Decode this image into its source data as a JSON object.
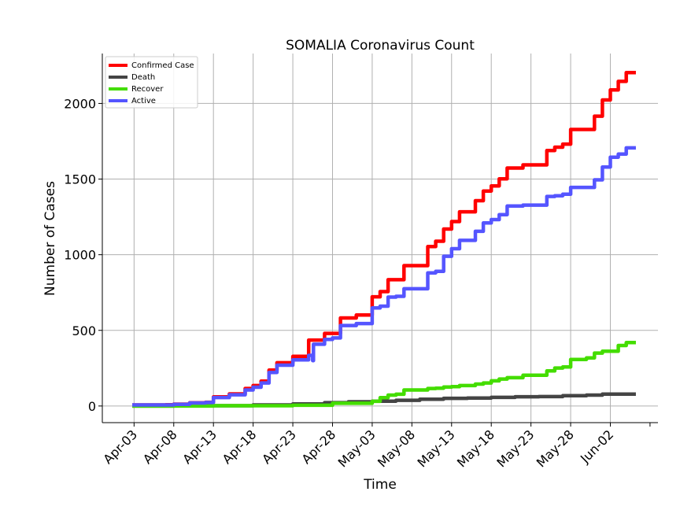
{
  "chart_data": {
    "type": "line",
    "title": "SOMALIA Coronavirus Count",
    "xlabel": "Time",
    "ylabel": "Number of Cases",
    "x_range": [
      "2020-03-30",
      "2020-06-08"
    ],
    "ylim": [
      -110,
      2330
    ],
    "y_ticks": [
      0,
      500,
      1000,
      1500,
      2000
    ],
    "x_ticks": [
      {
        "date": "2020-04-03",
        "label": "Apr-03"
      },
      {
        "date": "2020-04-08",
        "label": "Apr-08"
      },
      {
        "date": "2020-04-13",
        "label": "Apr-13"
      },
      {
        "date": "2020-04-18",
        "label": "Apr-18"
      },
      {
        "date": "2020-04-23",
        "label": "Apr-23"
      },
      {
        "date": "2020-04-28",
        "label": "Apr-28"
      },
      {
        "date": "2020-05-03",
        "label": "May-03"
      },
      {
        "date": "2020-05-08",
        "label": "May-08"
      },
      {
        "date": "2020-05-13",
        "label": "May-13"
      },
      {
        "date": "2020-05-18",
        "label": "May-18"
      },
      {
        "date": "2020-05-23",
        "label": "May-23"
      },
      {
        "date": "2020-05-28",
        "label": "May-28"
      },
      {
        "date": "2020-06-02",
        "label": "Jun-02"
      },
      {
        "date": "2020-06-07",
        "label": ""
      }
    ],
    "grid": true,
    "legend_position": "top-left",
    "series": [
      {
        "name": "Confirmed Case",
        "color": "#ff0000",
        "points": [
          [
            "2020-04-03",
            7
          ],
          [
            "2020-04-04",
            7
          ],
          [
            "2020-04-05",
            7
          ],
          [
            "2020-04-06",
            7
          ],
          [
            "2020-04-07",
            8
          ],
          [
            "2020-04-08",
            12
          ],
          [
            "2020-04-09",
            12
          ],
          [
            "2020-04-10",
            21
          ],
          [
            "2020-04-11",
            21
          ],
          [
            "2020-04-12",
            25
          ],
          [
            "2020-04-13",
            60
          ],
          [
            "2020-04-14",
            60
          ],
          [
            "2020-04-15",
            80
          ],
          [
            "2020-04-16",
            80
          ],
          [
            "2020-04-17",
            116
          ],
          [
            "2020-04-18",
            135
          ],
          [
            "2020-04-19",
            164
          ],
          [
            "2020-04-20",
            237
          ],
          [
            "2020-04-21",
            286
          ],
          [
            "2020-04-22",
            286
          ],
          [
            "2020-04-23",
            328
          ],
          [
            "2020-04-24",
            328
          ],
          [
            "2020-04-25",
            436
          ],
          [
            "2020-04-26",
            436
          ],
          [
            "2020-04-27",
            480
          ],
          [
            "2020-04-28",
            480
          ],
          [
            "2020-04-29",
            582
          ],
          [
            "2020-04-30",
            582
          ],
          [
            "2020-05-01",
            601
          ],
          [
            "2020-05-02",
            601
          ],
          [
            "2020-05-03",
            722
          ],
          [
            "2020-05-04",
            756
          ],
          [
            "2020-05-05",
            835
          ],
          [
            "2020-05-06",
            835
          ],
          [
            "2020-05-07",
            928
          ],
          [
            "2020-05-08",
            928
          ],
          [
            "2020-05-09",
            928
          ],
          [
            "2020-05-10",
            1054
          ],
          [
            "2020-05-11",
            1089
          ],
          [
            "2020-05-12",
            1170
          ],
          [
            "2020-05-13",
            1219
          ],
          [
            "2020-05-14",
            1284
          ],
          [
            "2020-05-15",
            1284
          ],
          [
            "2020-05-16",
            1357
          ],
          [
            "2020-05-17",
            1421
          ],
          [
            "2020-05-18",
            1455
          ],
          [
            "2020-05-19",
            1502
          ],
          [
            "2020-05-20",
            1573
          ],
          [
            "2020-05-21",
            1573
          ],
          [
            "2020-05-22",
            1594
          ],
          [
            "2020-05-23",
            1594
          ],
          [
            "2020-05-24",
            1594
          ],
          [
            "2020-05-25",
            1689
          ],
          [
            "2020-05-26",
            1711
          ],
          [
            "2020-05-27",
            1731
          ],
          [
            "2020-05-28",
            1828
          ],
          [
            "2020-05-29",
            1828
          ],
          [
            "2020-05-30",
            1828
          ],
          [
            "2020-05-31",
            1916
          ],
          [
            "2020-06-01",
            2023
          ],
          [
            "2020-06-02",
            2089
          ],
          [
            "2020-06-03",
            2146
          ],
          [
            "2020-06-04",
            2204
          ],
          [
            "2020-06-05",
            2204
          ]
        ]
      },
      {
        "name": "Death",
        "color": "#444444",
        "points": [
          [
            "2020-04-03",
            0
          ],
          [
            "2020-04-08",
            1
          ],
          [
            "2020-04-13",
            2
          ],
          [
            "2020-04-18",
            7
          ],
          [
            "2020-04-23",
            14
          ],
          [
            "2020-04-27",
            22
          ],
          [
            "2020-04-30",
            28
          ],
          [
            "2020-05-03",
            32
          ],
          [
            "2020-05-06",
            38
          ],
          [
            "2020-05-09",
            45
          ],
          [
            "2020-05-12",
            51
          ],
          [
            "2020-05-15",
            53
          ],
          [
            "2020-05-18",
            57
          ],
          [
            "2020-05-21",
            61
          ],
          [
            "2020-05-24",
            62
          ],
          [
            "2020-05-27",
            68
          ],
          [
            "2020-05-30",
            72
          ],
          [
            "2020-06-01",
            79
          ],
          [
            "2020-06-05",
            79
          ]
        ]
      },
      {
        "name": "Recover",
        "color": "#44dd00",
        "points": [
          [
            "2020-04-03",
            0
          ],
          [
            "2020-04-13",
            2
          ],
          [
            "2020-04-23",
            5
          ],
          [
            "2020-04-28",
            18
          ],
          [
            "2020-05-03",
            31
          ],
          [
            "2020-05-04",
            55
          ],
          [
            "2020-05-05",
            72
          ],
          [
            "2020-05-06",
            78
          ],
          [
            "2020-05-07",
            106
          ],
          [
            "2020-05-08",
            106
          ],
          [
            "2020-05-09",
            106
          ],
          [
            "2020-05-10",
            116
          ],
          [
            "2020-05-11",
            118
          ],
          [
            "2020-05-12",
            125
          ],
          [
            "2020-05-13",
            128
          ],
          [
            "2020-05-14",
            135
          ],
          [
            "2020-05-15",
            135
          ],
          [
            "2020-05-16",
            145
          ],
          [
            "2020-05-17",
            152
          ],
          [
            "2020-05-18",
            166
          ],
          [
            "2020-05-19",
            178
          ],
          [
            "2020-05-20",
            187
          ],
          [
            "2020-05-21",
            187
          ],
          [
            "2020-05-22",
            203
          ],
          [
            "2020-05-23",
            203
          ],
          [
            "2020-05-24",
            203
          ],
          [
            "2020-05-25",
            232
          ],
          [
            "2020-05-26",
            251
          ],
          [
            "2020-05-27",
            258
          ],
          [
            "2020-05-28",
            308
          ],
          [
            "2020-05-29",
            308
          ],
          [
            "2020-05-30",
            318
          ],
          [
            "2020-05-31",
            350
          ],
          [
            "2020-06-01",
            362
          ],
          [
            "2020-06-02",
            362
          ],
          [
            "2020-06-03",
            400
          ],
          [
            "2020-06-04",
            419
          ],
          [
            "2020-06-05",
            419
          ]
        ]
      },
      {
        "name": "Active",
        "color": "#5555ff",
        "points": [
          [
            "2020-04-03",
            7
          ],
          [
            "2020-04-04",
            7
          ],
          [
            "2020-04-05",
            7
          ],
          [
            "2020-04-06",
            7
          ],
          [
            "2020-04-07",
            7
          ],
          [
            "2020-04-08",
            11
          ],
          [
            "2020-04-09",
            11
          ],
          [
            "2020-04-10",
            20
          ],
          [
            "2020-04-11",
            20
          ],
          [
            "2020-04-12",
            23
          ],
          [
            "2020-04-13",
            56
          ],
          [
            "2020-04-14",
            56
          ],
          [
            "2020-04-15",
            74
          ],
          [
            "2020-04-16",
            74
          ],
          [
            "2020-04-17",
            106
          ],
          [
            "2020-04-18",
            124
          ],
          [
            "2020-04-19",
            152
          ],
          [
            "2020-04-20",
            222
          ],
          [
            "2020-04-21",
            270
          ],
          [
            "2020-04-22",
            270
          ],
          [
            "2020-04-23",
            305
          ],
          [
            "2020-04-24",
            305
          ],
          [
            "2020-04-25",
            335
          ],
          [
            "2020-04-25.5",
            300
          ],
          [
            "2020-04-25.6",
            408
          ],
          [
            "2020-04-26",
            408
          ],
          [
            "2020-04-27",
            440
          ],
          [
            "2020-04-28",
            450
          ],
          [
            "2020-04-29",
            532
          ],
          [
            "2020-04-30",
            532
          ],
          [
            "2020-05-01",
            545
          ],
          [
            "2020-05-02",
            545
          ],
          [
            "2020-05-03",
            648
          ],
          [
            "2020-05-04",
            660
          ],
          [
            "2020-05-05",
            720
          ],
          [
            "2020-05-06",
            725
          ],
          [
            "2020-05-07",
            775
          ],
          [
            "2020-05-08",
            775
          ],
          [
            "2020-05-09",
            775
          ],
          [
            "2020-05-10",
            880
          ],
          [
            "2020-05-11",
            890
          ],
          [
            "2020-05-12",
            990
          ],
          [
            "2020-05-13",
            1040
          ],
          [
            "2020-05-14",
            1095
          ],
          [
            "2020-05-15",
            1095
          ],
          [
            "2020-05-16",
            1155
          ],
          [
            "2020-05-17",
            1210
          ],
          [
            "2020-05-18",
            1232
          ],
          [
            "2020-05-19",
            1265
          ],
          [
            "2020-05-20",
            1322
          ],
          [
            "2020-05-21",
            1322
          ],
          [
            "2020-05-22",
            1328
          ],
          [
            "2020-05-23",
            1328
          ],
          [
            "2020-05-24",
            1328
          ],
          [
            "2020-05-25",
            1385
          ],
          [
            "2020-05-26",
            1390
          ],
          [
            "2020-05-27",
            1400
          ],
          [
            "2020-05-28",
            1445
          ],
          [
            "2020-05-29",
            1445
          ],
          [
            "2020-05-30",
            1445
          ],
          [
            "2020-05-31",
            1495
          ],
          [
            "2020-06-01",
            1580
          ],
          [
            "2020-06-02",
            1645
          ],
          [
            "2020-06-03",
            1665
          ],
          [
            "2020-06-04",
            1706
          ],
          [
            "2020-06-05",
            1706
          ]
        ]
      }
    ]
  }
}
